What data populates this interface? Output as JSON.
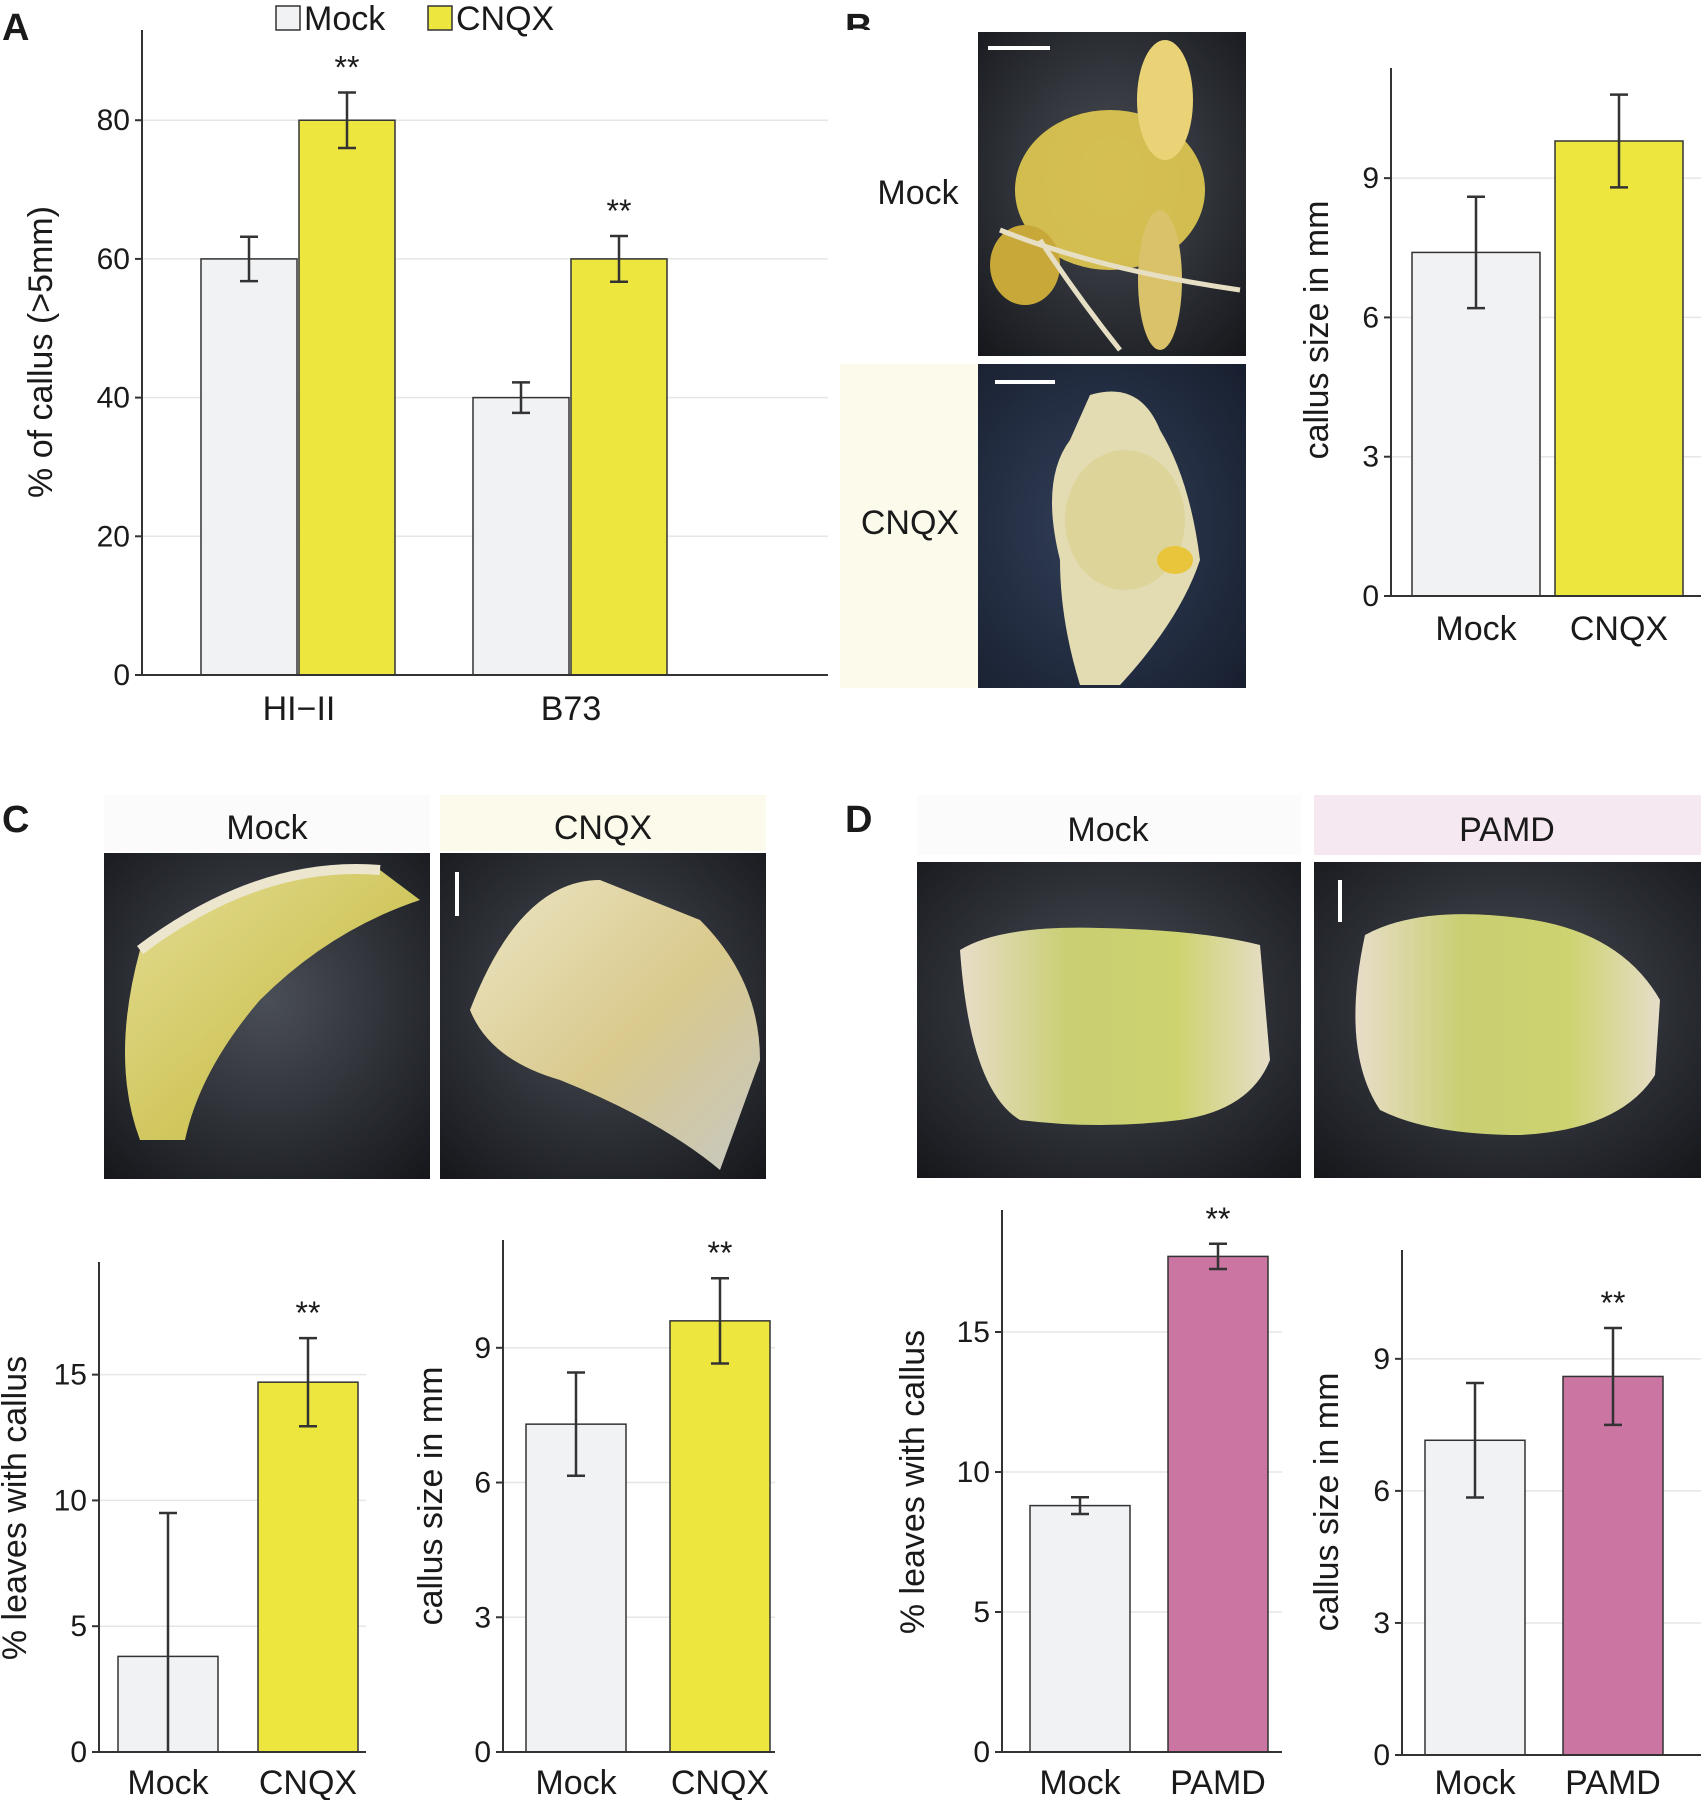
{
  "panels": {
    "A": "A",
    "B": "B",
    "C": "C",
    "D": "D"
  },
  "legend": {
    "mock": "Mock",
    "cnqx": "CNQX"
  },
  "colors": {
    "mock": "#f1f2f4",
    "cnqx": "#ede63e",
    "pamd": "#cb75a3",
    "bar_outline": "#333333",
    "grid": "#e6e6e6",
    "cnqx_tint": "#fcfaea",
    "pamd_tint": "#f6e8f0"
  },
  "photo_labels": {
    "b_mock": "Mock",
    "b_cnqx": "CNQX",
    "c_mock": "Mock",
    "c_cnqx": "CNQX",
    "d_mock": "Mock",
    "d_pamd": "PAMD"
  },
  "chart_data": [
    {
      "id": "A",
      "type": "bar",
      "categories": [
        "HI−II",
        "B73"
      ],
      "series": [
        {
          "name": "Mock",
          "values": [
            60,
            40
          ],
          "errors": [
            3.2,
            2.2
          ],
          "color": "#f1f2f4"
        },
        {
          "name": "CNQX",
          "values": [
            80,
            60
          ],
          "errors": [
            4.0,
            3.3
          ],
          "color": "#ede63e"
        }
      ],
      "significance": [
        "",
        "**",
        "",
        "**"
      ],
      "ylabel": "% of callus (>5mm)",
      "xlabel": "",
      "ylim": [
        0,
        92
      ],
      "yticks": [
        0,
        20,
        40,
        60,
        80
      ],
      "legend_position": "top"
    },
    {
      "id": "B",
      "type": "bar",
      "categories": [
        "Mock",
        "CNQX"
      ],
      "values": [
        7.4,
        9.8
      ],
      "errors": [
        1.2,
        1.0
      ],
      "colors": [
        "#f1f2f4",
        "#ede63e"
      ],
      "significance": [
        "",
        ""
      ],
      "ylabel": "callus size in mm",
      "xlabel": "",
      "ylim": [
        0,
        11.2
      ],
      "yticks": [
        0,
        3,
        6,
        9
      ]
    },
    {
      "id": "C-left",
      "type": "bar",
      "categories": [
        "Mock",
        "CNQX"
      ],
      "values": [
        3.8,
        14.7
      ],
      "errors": [
        5.7,
        1.75
      ],
      "colors": [
        "#f1f2f4",
        "#ede63e"
      ],
      "significance": [
        "",
        "**"
      ],
      "ylabel": "% leaves with callus",
      "xlabel": "",
      "ylim": [
        0,
        19
      ],
      "yticks": [
        0,
        5,
        10,
        15
      ]
    },
    {
      "id": "C-right",
      "type": "bar",
      "categories": [
        "Mock",
        "CNQX"
      ],
      "values": [
        7.3,
        9.6
      ],
      "errors": [
        1.15,
        0.95
      ],
      "colors": [
        "#f1f2f4",
        "#ede63e"
      ],
      "significance": [
        "",
        "**"
      ],
      "ylabel": "callus size in mm",
      "xlabel": "",
      "ylim": [
        0,
        11.2
      ],
      "yticks": [
        0,
        3,
        6,
        9
      ]
    },
    {
      "id": "D-left",
      "type": "bar",
      "categories": [
        "Mock",
        "PAMD"
      ],
      "values": [
        8.8,
        17.7
      ],
      "errors": [
        0.3,
        0.45
      ],
      "colors": [
        "#f1f2f4",
        "#cb75a3"
      ],
      "significance": [
        "",
        "**"
      ],
      "ylabel": "% leaves with callus",
      "xlabel": "",
      "ylim": [
        0,
        19
      ],
      "yticks": [
        0,
        5,
        10,
        15
      ]
    },
    {
      "id": "D-right",
      "type": "bar",
      "categories": [
        "Mock",
        "PAMD"
      ],
      "values": [
        7.15,
        8.6
      ],
      "errors": [
        1.3,
        1.1
      ],
      "colors": [
        "#f1f2f4",
        "#cb75a3"
      ],
      "significance": [
        "",
        "**"
      ],
      "ylabel": "callus size in mm",
      "xlabel": "",
      "ylim": [
        0,
        11.2
      ],
      "yticks": [
        0,
        3,
        6,
        9
      ]
    }
  ]
}
